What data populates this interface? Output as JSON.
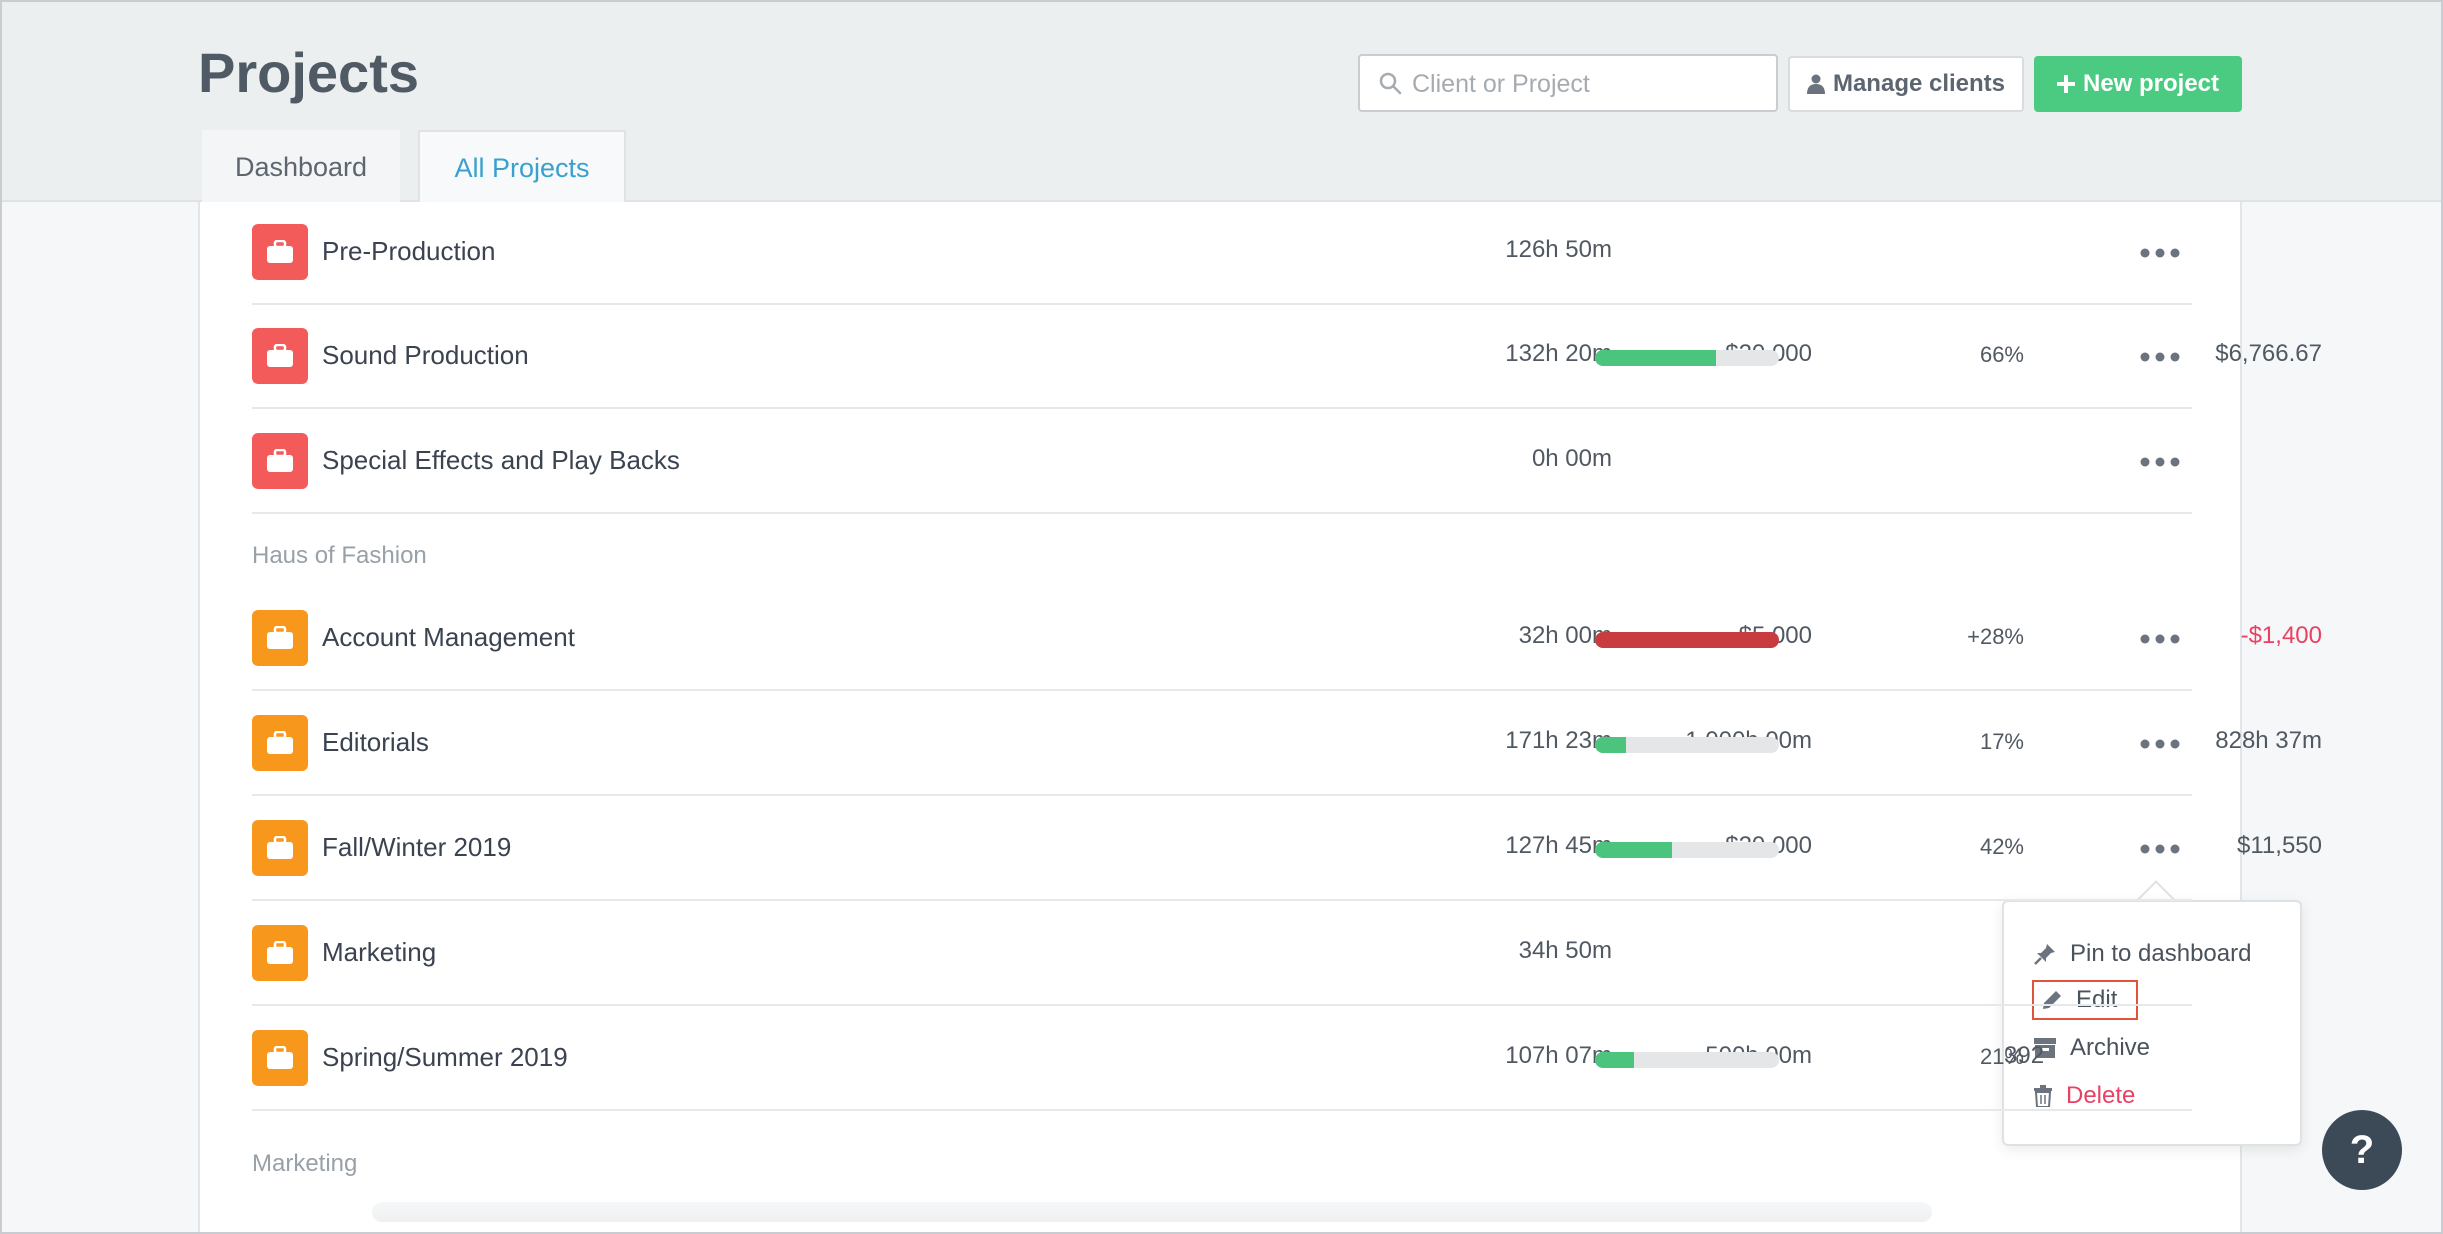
{
  "header": {
    "title": "Projects",
    "search_placeholder": "Client or Project",
    "manage_clients_label": "Manage clients",
    "new_project_label": "New project"
  },
  "tabs": [
    {
      "label": "Dashboard",
      "active": false
    },
    {
      "label": "All Projects",
      "active": true
    }
  ],
  "colors": {
    "red_project": "#f35b5b",
    "orange_project": "#f7981c",
    "progress_green": "#4bc57e",
    "progress_red": "#c83c3f",
    "danger_text": "#e94163",
    "new_button": "#4bcb81"
  },
  "rows": [
    {
      "name": "Pre-Production",
      "hours": "126h 50m",
      "budget": "",
      "progress": null,
      "pct": "",
      "remaining": "",
      "color": "red"
    },
    {
      "name": "Sound Production",
      "hours": "132h 20m",
      "budget": "$20,000",
      "progress": 0.66,
      "pct": "66%",
      "remaining": "$6,766.67",
      "color": "red"
    },
    {
      "name": "Special Effects and Play Backs",
      "hours": "0h 00m",
      "budget": "",
      "progress": null,
      "pct": "",
      "remaining": "",
      "color": "red"
    }
  ],
  "groups": [
    {
      "label": "Haus of Fashion",
      "rows": [
        {
          "name": "Account Management",
          "hours": "32h 00m",
          "budget": "$5,000",
          "progress": 1.0,
          "over": true,
          "pct": "+28%",
          "remaining": "-$1,400",
          "color": "orange"
        },
        {
          "name": "Editorials",
          "hours": "171h 23m",
          "budget": "1,000h 00m",
          "progress": 0.17,
          "pct": "17%",
          "remaining": "828h 37m",
          "color": "orange"
        },
        {
          "name": "Fall/Winter 2019",
          "hours": "127h 45m",
          "budget": "$20,000",
          "progress": 0.42,
          "pct": "42%",
          "remaining": "$11,550",
          "color": "orange"
        },
        {
          "name": "Marketing",
          "hours": "34h 50m",
          "budget": "",
          "progress": null,
          "pct": "",
          "remaining": "",
          "color": "orange"
        },
        {
          "name": "Spring/Summer 2019",
          "hours": "107h 07m",
          "budget": "500h 00m",
          "progress": 0.21,
          "pct": "21%",
          "remaining": "392",
          "color": "orange"
        }
      ]
    },
    {
      "label": "Marketing",
      "rows": []
    }
  ],
  "context_menu": {
    "items": [
      {
        "label": "Pin to dashboard",
        "icon": "pin-icon"
      },
      {
        "label": "Edit",
        "icon": "pencil-icon",
        "highlighted": true
      },
      {
        "label": "Archive",
        "icon": "archive-icon"
      },
      {
        "label": "Delete",
        "icon": "trash-icon",
        "danger": true
      }
    ]
  },
  "help_label": "?"
}
